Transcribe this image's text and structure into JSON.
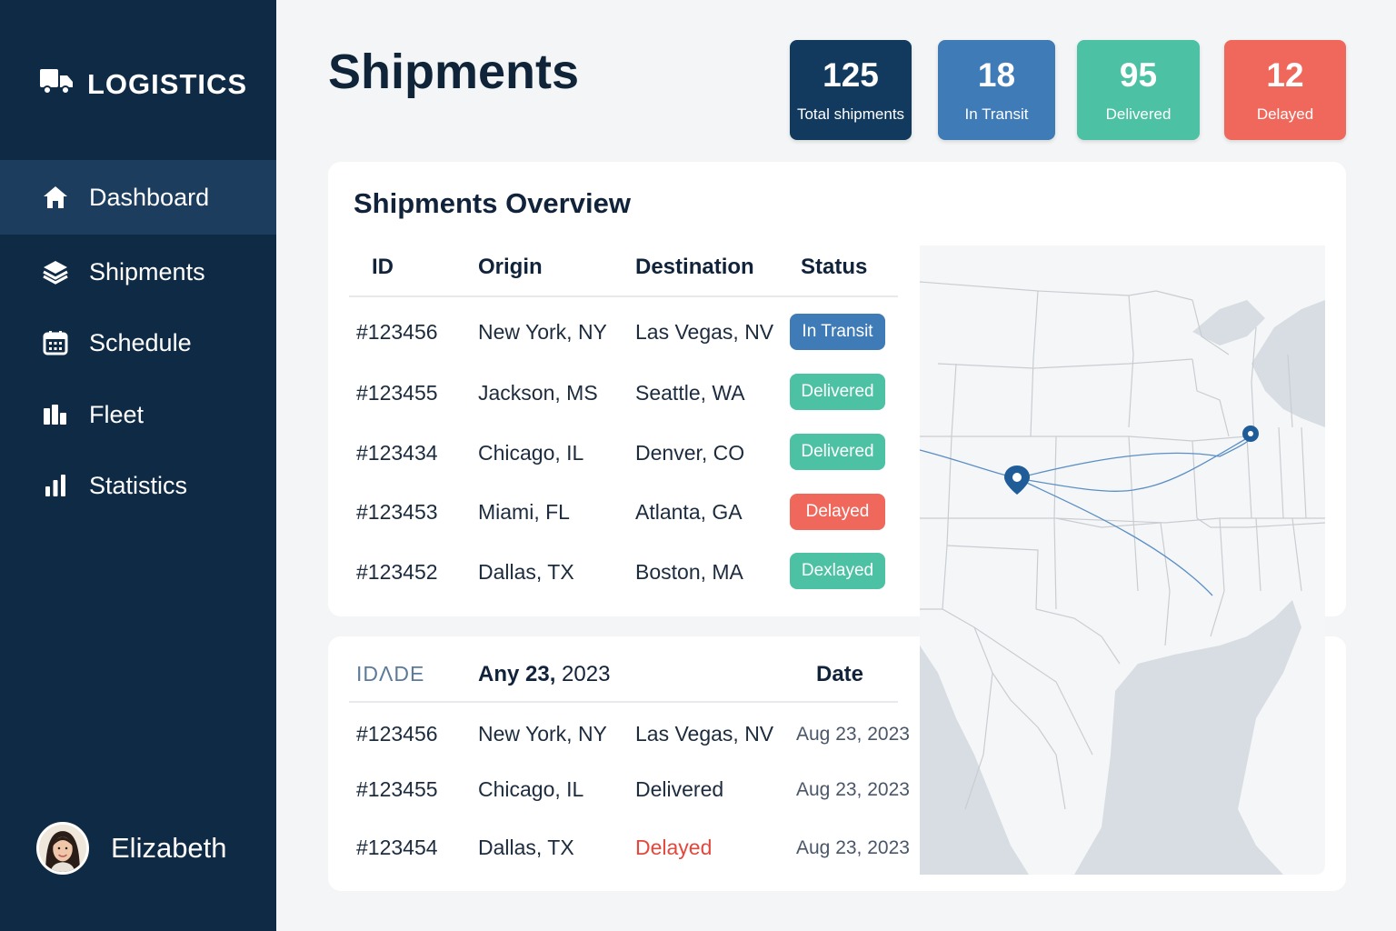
{
  "app": {
    "brand": "LOGISTICS"
  },
  "sidebar": {
    "items": [
      {
        "label": "Dashboard",
        "icon": "home-icon",
        "active": true
      },
      {
        "label": "Shipments",
        "icon": "layers-icon",
        "active": false
      },
      {
        "label": "Schedule",
        "icon": "calendar-icon",
        "active": false
      },
      {
        "label": "Fleet",
        "icon": "fleet-icon",
        "active": false
      },
      {
        "label": "Statistics",
        "icon": "bar-chart-icon",
        "active": false
      }
    ],
    "user": {
      "name": "Elizabeth"
    }
  },
  "header": {
    "title": "Shipments"
  },
  "stats": [
    {
      "value": "125",
      "label": "Total shipments",
      "color": "#123a5e"
    },
    {
      "value": "18",
      "label": "In Transit",
      "color": "#3f7bb6"
    },
    {
      "value": "95",
      "label": "Delivered",
      "color": "#4cc1a4"
    },
    {
      "value": "12",
      "label": "Delayed",
      "color": "#f0685c"
    }
  ],
  "overview": {
    "title": "Shipments Overview",
    "columns": [
      "ID",
      "Origin",
      "Destination",
      "Status"
    ],
    "rows": [
      {
        "id": "#123456",
        "origin": "New York, NY",
        "destination": "Las Vegas, NV",
        "status": "In Transit",
        "status_color": "#3f7bb6"
      },
      {
        "id": "#123455",
        "origin": "Jackson, MS",
        "destination": "Seattle, WA",
        "status": "Delivered",
        "status_color": "#4cc1a4"
      },
      {
        "id": "#123434",
        "origin": "Chicago, IL",
        "destination": "Denver, CO",
        "status": "Delivered",
        "status_color": "#4cc1a4"
      },
      {
        "id": "#123453",
        "origin": "Miami, FL",
        "destination": "Atlanta, GA",
        "status": "Delayed",
        "status_color": "#f0685c"
      },
      {
        "id": "#123452",
        "origin": "Dallas, TX",
        "destination": "Boston, MA",
        "status": "Dexlayed",
        "status_color": "#4cc1a4"
      }
    ]
  },
  "recent": {
    "logo": "IDΛDE",
    "header_date_bold": "Any 23,",
    "header_date_rest": " 2023",
    "date_col": "Date",
    "rows": [
      {
        "id": "#123456",
        "origin": "New York, NY",
        "destination": "Las Vegas, NV",
        "date": "Aug 23, 2023"
      },
      {
        "id": "#123455",
        "origin": "Chicago, IL",
        "destination": "Delivered",
        "date": "Aug 23, 2023"
      },
      {
        "id": "#123454",
        "origin": "Dallas, TX",
        "destination": "Delayed",
        "date": "Aug 23, 2023",
        "destination_color": "#e4473c"
      }
    ]
  }
}
